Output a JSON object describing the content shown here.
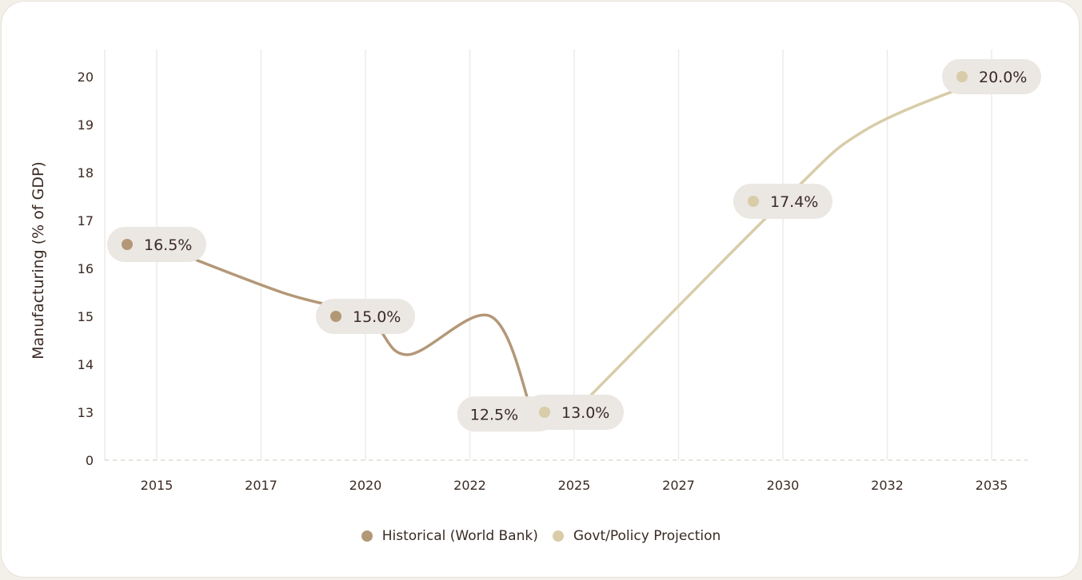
{
  "chart_data": {
    "type": "line",
    "ylabel": "Manufacturing (% of GDP)",
    "xlabel": "",
    "x_ticks": [
      "2015",
      "2017",
      "2020",
      "2022",
      "2025",
      "2027",
      "2030",
      "2032",
      "2035"
    ],
    "y_ticks": [
      "0",
      "13",
      "14",
      "15",
      "16",
      "17",
      "18",
      "19",
      "20"
    ],
    "y_axis_break": "0 to 13",
    "grid": "vertical",
    "legend_position": "bottom",
    "series": [
      {
        "name": "Historical (World Bank)",
        "color": "#b39878",
        "points": [
          {
            "x": 2015,
            "y": 16.5,
            "label": "16.5%"
          },
          {
            "x": 2018,
            "y": 15.5
          },
          {
            "x": 2020,
            "y": 15.0,
            "label": "15.0%"
          },
          {
            "x": 2021,
            "y": 14.2
          },
          {
            "x": 2023,
            "y": 15.0
          },
          {
            "x": 2024,
            "y": 12.5,
            "label": "12.5%"
          }
        ]
      },
      {
        "name": "Govt/Policy Projection",
        "color": "#d8cca9",
        "points": [
          {
            "x": 2025,
            "y": 13.0,
            "label": "13.0%"
          },
          {
            "x": 2030,
            "y": 17.4,
            "label": "17.4%"
          },
          {
            "x": 2032,
            "y": 18.9
          },
          {
            "x": 2035,
            "y": 20.0,
            "label": "20.0%"
          }
        ]
      }
    ]
  }
}
